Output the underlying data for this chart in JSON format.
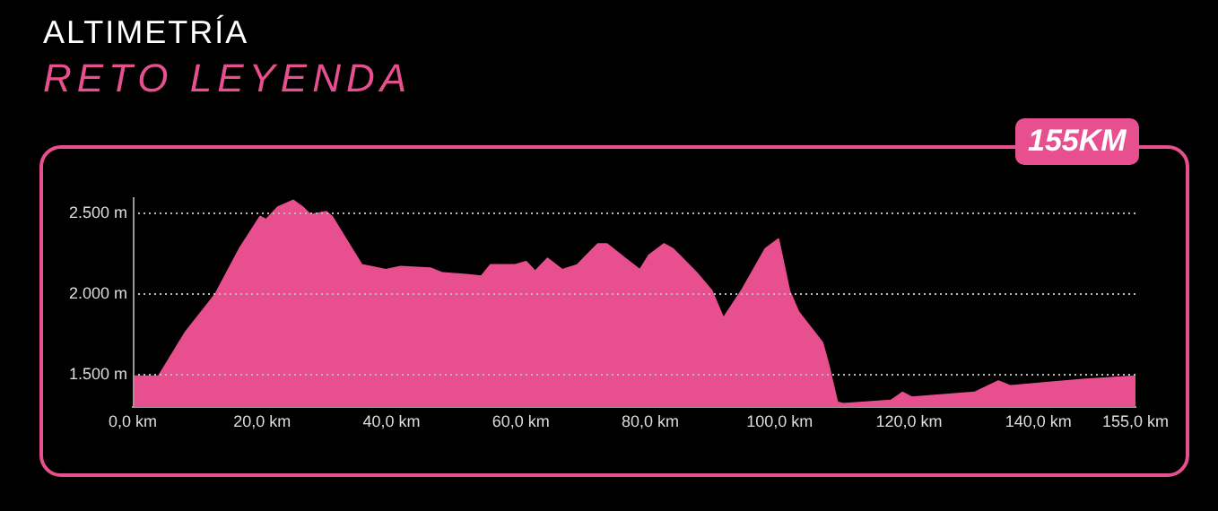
{
  "chart_data": {
    "type": "area",
    "title": "ALTIMETRÍA",
    "subtitle": "RETO LEYENDA",
    "annotations": [
      "155KM"
    ],
    "x": [
      0,
      4,
      8.1,
      12.8,
      16.5,
      19.7,
      20.6,
      22.5,
      24.8,
      26.2,
      27.5,
      29.9,
      30.8,
      35.4,
      36.8,
      39.1,
      41.4,
      46,
      47.9,
      51.6,
      53.9,
      55.3,
      59,
      60.8,
      62.2,
      64.1,
      66.4,
      68.7,
      71.9,
      73.3,
      76.1,
      78.4,
      79.8,
      82.1,
      83.5,
      87.2,
      89.5,
      91.3,
      94.1,
      97.8,
      99.8,
      101.5,
      102.9,
      106.6,
      107.5,
      108.9,
      109.8,
      117.2,
      119,
      120.4,
      130.1,
      133.8,
      135.7,
      141.2,
      146.8,
      155
    ],
    "series": [
      {
        "color": "#e84f8e",
        "values": [
          1490,
          1490,
          1760,
          2000,
          2280,
          2480,
          2460,
          2540,
          2580,
          2540,
          2490,
          2510,
          2480,
          2180,
          2170,
          2150,
          2170,
          2160,
          2130,
          2120,
          2110,
          2180,
          2180,
          2200,
          2140,
          2220,
          2150,
          2180,
          2310,
          2310,
          2220,
          2150,
          2240,
          2310,
          2280,
          2130,
          2020,
          1850,
          2020,
          2280,
          2340,
          2020,
          1890,
          1700,
          1570,
          1330,
          1320,
          1340,
          1390,
          1360,
          1390,
          1460,
          1430,
          1450,
          1470,
          1490
        ]
      }
    ],
    "xlim": [
      0,
      155
    ],
    "xticks": [
      {
        "value": 0,
        "label": "0,0 km"
      },
      {
        "value": 20,
        "label": "20,0 km"
      },
      {
        "value": 40,
        "label": "40,0 km"
      },
      {
        "value": 60,
        "label": "60,0 km"
      },
      {
        "value": 80,
        "label": "80,0 km"
      },
      {
        "value": 100,
        "label": "100,0 km"
      },
      {
        "value": 120,
        "label": "120,0 km"
      },
      {
        "value": 140,
        "label": "140,0 km"
      },
      {
        "value": 155,
        "label": "155,0 km"
      }
    ],
    "ylim": [
      1300,
      2600
    ],
    "yticks": [
      {
        "value": 1500,
        "label": "1.500 m"
      },
      {
        "value": 2000,
        "label": "2.000 m"
      },
      {
        "value": 2500,
        "label": "2.500 m"
      }
    ],
    "grid": "y",
    "legend": false,
    "marker": "none"
  }
}
